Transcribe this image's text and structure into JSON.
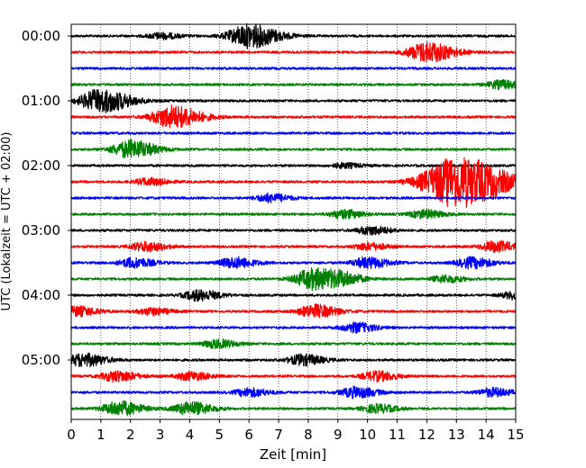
{
  "chart_data": {
    "type": "line",
    "title": "",
    "xlabel": "Zeit  [min]",
    "ylabel": "UTC (Lokalzeit = UTC + 02:00)",
    "xlim": [
      0,
      15
    ],
    "x_ticks": [
      "0",
      "1",
      "2",
      "3",
      "4",
      "5",
      "6",
      "7",
      "8",
      "9",
      "10",
      "11",
      "12",
      "13",
      "14",
      "15"
    ],
    "y_tick_labels": [
      "00:00",
      "01:00",
      "02:00",
      "03:00",
      "04:00",
      "05:00"
    ],
    "trace_interval_minutes": 15,
    "trace_count": 24,
    "grid": "vertical dotted at each minute",
    "series_colors": [
      "#000000",
      "#ff0000",
      "#0000ff",
      "#008000"
    ],
    "events": [
      {
        "trace": 0,
        "minute": 6.0,
        "amplitude": 1.0
      },
      {
        "trace": 0,
        "minute": 3.0,
        "amplitude": 0.25
      },
      {
        "trace": 1,
        "minute": 12.0,
        "amplitude": 0.85
      },
      {
        "trace": 3,
        "minute": 14.5,
        "amplitude": 0.35
      },
      {
        "trace": 4,
        "minute": 1.0,
        "amplitude": 1.0
      },
      {
        "trace": 5,
        "minute": 3.4,
        "amplitude": 0.95
      },
      {
        "trace": 7,
        "minute": 2.0,
        "amplitude": 0.75
      },
      {
        "trace": 8,
        "minute": 9.2,
        "amplitude": 0.2
      },
      {
        "trace": 9,
        "minute": 13.0,
        "amplitude": 2.2
      },
      {
        "trace": 9,
        "minute": 2.6,
        "amplitude": 0.3
      },
      {
        "trace": 10,
        "minute": 6.7,
        "amplitude": 0.35
      },
      {
        "trace": 11,
        "minute": 9.2,
        "amplitude": 0.35
      },
      {
        "trace": 11,
        "minute": 11.9,
        "amplitude": 0.35
      },
      {
        "trace": 12,
        "minute": 10.1,
        "amplitude": 0.35
      },
      {
        "trace": 13,
        "minute": 2.5,
        "amplitude": 0.4
      },
      {
        "trace": 13,
        "minute": 10.0,
        "amplitude": 0.3
      },
      {
        "trace": 13,
        "minute": 14.3,
        "amplitude": 0.45
      },
      {
        "trace": 14,
        "minute": 2.1,
        "amplitude": 0.4
      },
      {
        "trace": 14,
        "minute": 5.5,
        "amplitude": 0.45
      },
      {
        "trace": 14,
        "minute": 10.0,
        "amplitude": 0.45
      },
      {
        "trace": 14,
        "minute": 13.5,
        "amplitude": 0.45
      },
      {
        "trace": 15,
        "minute": 8.2,
        "amplitude": 0.9
      },
      {
        "trace": 15,
        "minute": 9.2,
        "amplitude": 0.35
      },
      {
        "trace": 15,
        "minute": 12.6,
        "amplitude": 0.3
      },
      {
        "trace": 16,
        "minute": 4.3,
        "amplitude": 0.45
      },
      {
        "trace": 16,
        "minute": 15.0,
        "amplitude": 0.35
      },
      {
        "trace": 17,
        "minute": 0.2,
        "amplitude": 0.4
      },
      {
        "trace": 17,
        "minute": 2.7,
        "amplitude": 0.3
      },
      {
        "trace": 17,
        "minute": 8.2,
        "amplitude": 0.55
      },
      {
        "trace": 18,
        "minute": 9.6,
        "amplitude": 0.4
      },
      {
        "trace": 19,
        "minute": 4.9,
        "amplitude": 0.35
      },
      {
        "trace": 20,
        "minute": 0.4,
        "amplitude": 0.55
      },
      {
        "trace": 20,
        "minute": 7.8,
        "amplitude": 0.45
      },
      {
        "trace": 21,
        "minute": 1.5,
        "amplitude": 0.45
      },
      {
        "trace": 21,
        "minute": 4.0,
        "amplitude": 0.35
      },
      {
        "trace": 21,
        "minute": 10.3,
        "amplitude": 0.4
      },
      {
        "trace": 22,
        "minute": 6.0,
        "amplitude": 0.35
      },
      {
        "trace": 22,
        "minute": 9.6,
        "amplitude": 0.45
      },
      {
        "trace": 22,
        "minute": 14.2,
        "amplitude": 0.35
      },
      {
        "trace": 23,
        "minute": 1.6,
        "amplitude": 0.6
      },
      {
        "trace": 23,
        "minute": 4.0,
        "amplitude": 0.55
      },
      {
        "trace": 23,
        "minute": 10.3,
        "amplitude": 0.35
      }
    ]
  }
}
